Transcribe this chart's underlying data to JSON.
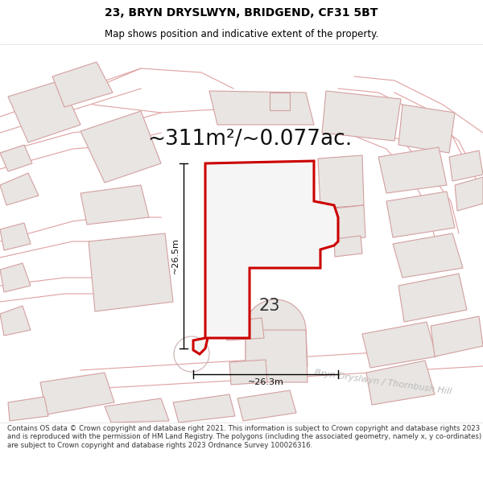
{
  "title_line1": "23, BRYN DRYSLWYN, BRIDGEND, CF31 5BT",
  "title_line2": "Map shows position and indicative extent of the property.",
  "area_text": "~311m²/~0.077ac.",
  "plot_label": "23",
  "dim_height": "~26.5m",
  "dim_width": "~26.3m",
  "street_name": "Bryn Dryslwyn / Thornbush Hill",
  "footer_text": "Contains OS data © Crown copyright and database right 2021. This information is subject to Crown copyright and database rights 2023 and is reproduced with the permission of HM Land Registry. The polygons (including the associated geometry, namely x, y co-ordinates) are subject to Crown copyright and database rights 2023 Ordnance Survey 100026316.",
  "bg_color": "#ffffff",
  "map_bg": "#ffffff",
  "plot_color": "#cc0000",
  "building_fill": "#e8e5e2",
  "building_stroke": "#d4a0a0",
  "road_stroke": "#e0a0a0",
  "title_fontsize": 10,
  "subtitle_fontsize": 8.5,
  "area_fontsize": 19,
  "label_fontsize": 15,
  "dim_fontsize": 8,
  "street_fontsize": 8,
  "footer_fontsize": 6.2
}
